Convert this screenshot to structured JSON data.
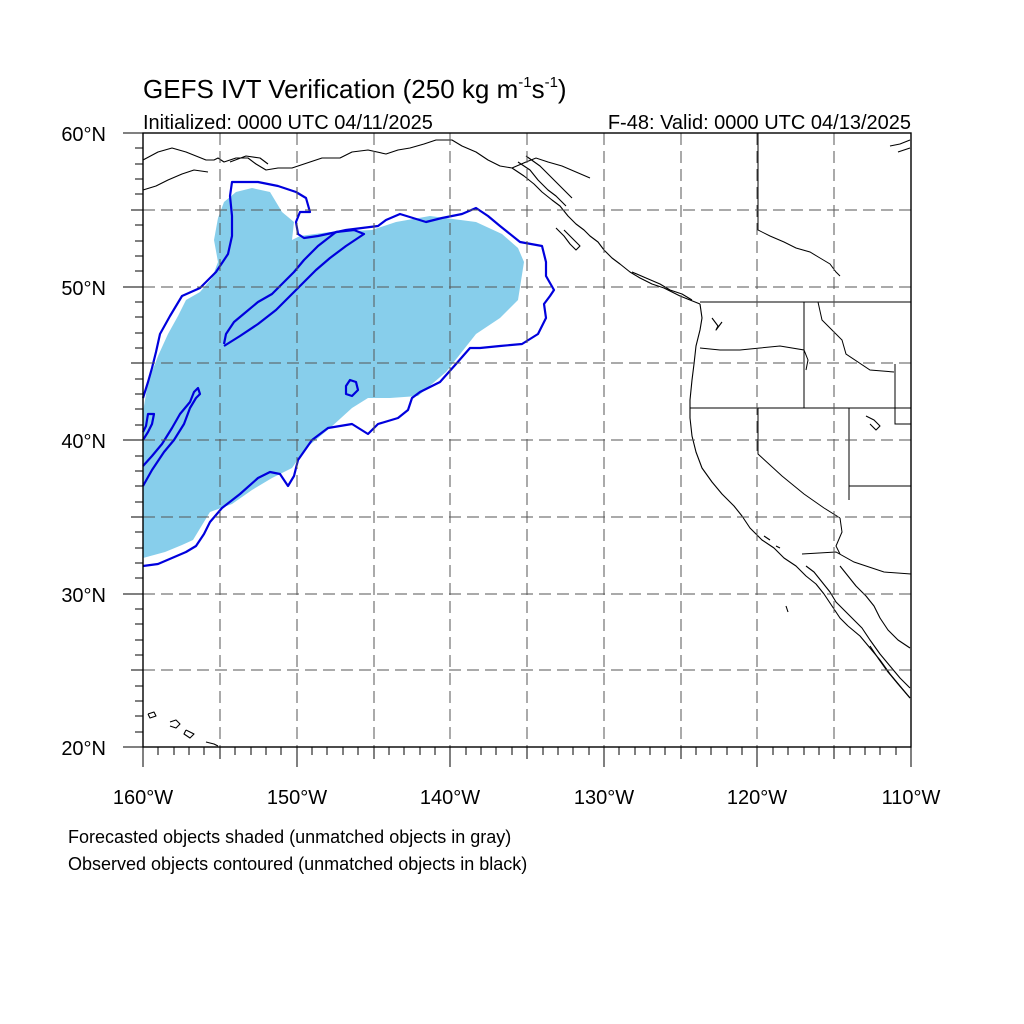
{
  "title": {
    "main": "GEFS IVT Verification (250 kg m",
    "exp1": "-1",
    "mid": "s",
    "exp2": "-1",
    "close": ")"
  },
  "subtitle_left": "Initialized: 0000 UTC 04/11/2025",
  "subtitle_right": "F-48: Valid: 0000 UTC 04/13/2025",
  "lat_labels": [
    "60°N",
    "50°N",
    "40°N",
    "30°N",
    "20°N"
  ],
  "lon_labels": [
    "160°W",
    "150°W",
    "140°W",
    "130°W",
    "120°W",
    "110°W"
  ],
  "footnote_1": "Forecasted objects shaded (unmatched objects in gray)",
  "footnote_2": "Observed objects contoured (unmatched objects in black)",
  "map_extent": {
    "lon_min": -160,
    "lon_max": -110,
    "lat_min": 20,
    "lat_max": 60
  },
  "colors": {
    "forecast_fill": "#87ceeb",
    "observed_contour": "#0000dd",
    "coastline": "#000000",
    "grid": "#555555"
  }
}
